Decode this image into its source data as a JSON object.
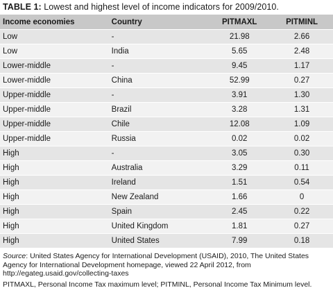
{
  "caption": {
    "label": "TABLE 1:",
    "text": " Lowest and highest level of income indicators for 2009/2010."
  },
  "table": {
    "headers": [
      "Income economies",
      "Country",
      "PITMAXL",
      "PITMINL"
    ],
    "rows": [
      [
        "Low",
        "-",
        "21.98",
        "2.66"
      ],
      [
        "Low",
        "India",
        "5.65",
        "2.48"
      ],
      [
        "Lower-middle",
        "-",
        "9.45",
        "1.17"
      ],
      [
        "Lower-middle",
        "China",
        "52.99",
        "0.27"
      ],
      [
        "Upper-middle",
        "-",
        "3.91",
        "1.30"
      ],
      [
        "Upper-middle",
        "Brazil",
        "3.28",
        "1.31"
      ],
      [
        "Upper-middle",
        "Chile",
        "12.08",
        "1.09"
      ],
      [
        "Upper-middle",
        "Russia",
        "0.02",
        "0.02"
      ],
      [
        "High",
        "-",
        "3.05",
        "0.30"
      ],
      [
        "High",
        "Australia",
        "3.29",
        "0.11"
      ],
      [
        "High",
        "Ireland",
        "1.51",
        "0.54"
      ],
      [
        "High",
        "New Zealand",
        "1.66",
        "0"
      ],
      [
        "High",
        "Spain",
        "2.45",
        "0.22"
      ],
      [
        "High",
        "United Kingdom",
        "1.81",
        "0.27"
      ],
      [
        "High",
        "United States",
        "7.99",
        "0.18"
      ]
    ]
  },
  "source": {
    "label": "Source",
    "text": ": United States Agency for International Development (USAID), 2010, The United States Agency for International Development homepage, viewed 22 April 2012, from http://egateg.usaid.gov/collecting-taxes"
  },
  "abbreviations": "PITMAXL, Personal Income Tax maximum level; PITMINL, Personal Income Tax Minimum level."
}
